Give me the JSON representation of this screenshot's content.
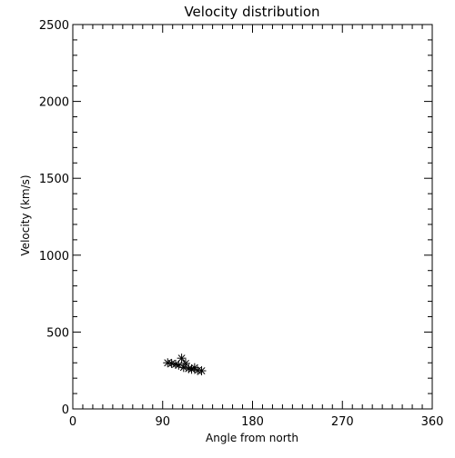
{
  "chart_data": {
    "type": "scatter",
    "title": "Velocity distribution",
    "xlabel": "Angle from north",
    "ylabel": "Velocity (km/s)",
    "xlim": [
      0,
      360
    ],
    "ylim": [
      0,
      2500
    ],
    "xticks": [
      0,
      90,
      180,
      270,
      360
    ],
    "yticks": [
      0,
      500,
      1000,
      1500,
      2000,
      2500
    ],
    "grid": false,
    "marker": "asterisk",
    "series": [
      {
        "points": [
          {
            "x": 95,
            "y": 300
          },
          {
            "x": 99,
            "y": 296
          },
          {
            "x": 103,
            "y": 290
          },
          {
            "x": 106,
            "y": 285
          },
          {
            "x": 109,
            "y": 330
          },
          {
            "x": 111,
            "y": 270
          },
          {
            "x": 113,
            "y": 296
          },
          {
            "x": 116,
            "y": 262
          },
          {
            "x": 119,
            "y": 258
          },
          {
            "x": 122,
            "y": 268
          },
          {
            "x": 125,
            "y": 250
          },
          {
            "x": 129,
            "y": 248
          }
        ]
      }
    ]
  }
}
